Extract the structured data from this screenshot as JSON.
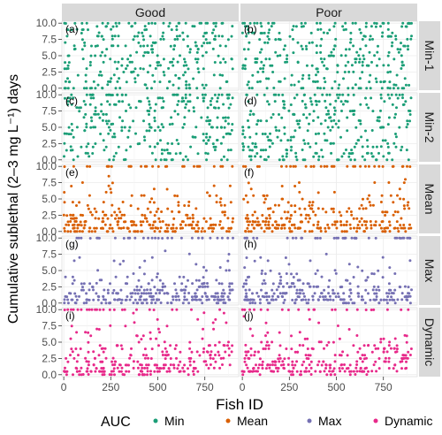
{
  "chart_data": {
    "type": "scatter",
    "xlabel": "Fish ID",
    "ylabel": "Cumulative sublethal (2–3 mg L⁻¹) days",
    "x_ticks": [
      0,
      250,
      500,
      750
    ],
    "y_ticks": [
      "0.0",
      "2.5",
      "5.0",
      "7.5",
      "10.0"
    ],
    "xlim": [
      -10,
      930
    ],
    "ylim": [
      -0.3,
      10.3
    ],
    "columns": [
      "Good",
      "Poor"
    ],
    "rows": [
      "Min-1",
      "Min-2",
      "Mean",
      "Max",
      "Dynamic"
    ],
    "panel_labels": [
      "(a)",
      "(b)",
      "(c)",
      "(d)",
      "(e)",
      "(f)",
      "(g)",
      "(h)",
      "(i)",
      "(j)"
    ],
    "legend": {
      "title": "AUC",
      "entries": [
        "Min",
        "Mean",
        "Max",
        "Dynamic"
      ],
      "position": "bottom"
    },
    "colors": {
      "Min": "#1b9e77",
      "Mean": "#d95f02",
      "Max": "#7570b3",
      "Dynamic": "#e7298a",
      "strip": "#d9d9d9",
      "panel": "#ffffff",
      "grid": "#ebebeb"
    },
    "series_by_row": [
      "Min",
      "Min",
      "Mean",
      "Max",
      "Dynamic"
    ],
    "points_per_panel": 300,
    "x_max": 900,
    "grid": true
  }
}
